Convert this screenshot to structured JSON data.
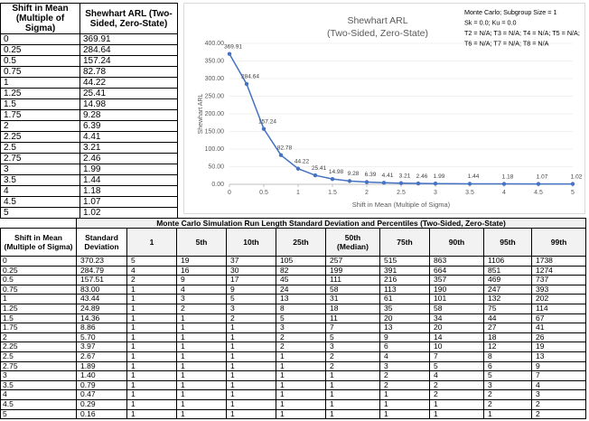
{
  "top_table": {
    "headers": [
      "Shift in Mean (Multiple of Sigma)",
      "Shewhart ARL (Two-Sided, Zero-State)"
    ]
  },
  "chart_data": {
    "type": "line",
    "title": "Shewhart ARL",
    "subtitle": "(Two-Sided, Zero-State)",
    "annotations": [
      "Monte Carlo; Subgroup Size = 1",
      "Sk = 0.0; Ku = 0.0",
      "T2 = N/A; T3 = N/A; T4 = N/A; T5 = N/A;",
      "T6 = N/A; T7 = N/A; T8 = N/A"
    ],
    "x_label": "Shift in Mean (Multiple of Sigma)",
    "y_label": "Shewhart ARL",
    "x": [
      0,
      0.25,
      0.5,
      0.75,
      1,
      1.25,
      1.5,
      1.75,
      2,
      2.25,
      2.5,
      2.75,
      3,
      3.5,
      4,
      4.5,
      5
    ],
    "series": [
      {
        "name": "Shewhart ARL",
        "color": "#4472c4",
        "values": [
          369.91,
          284.64,
          157.24,
          82.78,
          44.22,
          25.41,
          14.98,
          9.28,
          6.39,
          4.41,
          3.21,
          2.46,
          1.99,
          1.44,
          1.18,
          1.07,
          1.02
        ]
      }
    ],
    "xlim": [
      0,
      5
    ],
    "xticks": [
      0,
      0.5,
      1,
      1.5,
      2,
      2.5,
      3,
      3.5,
      4,
      4.5,
      5
    ],
    "ylim": [
      0,
      400
    ],
    "yticks": [
      {
        "value": 0,
        "label": "0.00"
      },
      {
        "value": 50,
        "label": "50.00"
      },
      {
        "value": 100,
        "label": "100.00"
      },
      {
        "value": 150,
        "label": "150.00"
      },
      {
        "value": 200,
        "label": "200.00"
      },
      {
        "value": 250,
        "label": "250.00"
      },
      {
        "value": 300,
        "label": "300.00"
      },
      {
        "value": 350,
        "label": "350.00"
      },
      {
        "value": 400,
        "label": "400.00"
      }
    ],
    "grid": true
  },
  "bottom_table": {
    "title": "Monte Carlo Simulation Run Length Standard Deviation and Percentiles (Two-Sided, Zero-State)",
    "headers": [
      "Shift in Mean (Multiple of Sigma)",
      "Standard Deviation",
      "1",
      "5th",
      "10th",
      "25th",
      "50th (Median)",
      "75th",
      "90th",
      "95th",
      "99th"
    ],
    "rows": [
      [
        "0",
        "370.23",
        "5",
        "19",
        "37",
        "105",
        "257",
        "515",
        "863",
        "1106",
        "1738"
      ],
      [
        "0.25",
        "284.79",
        "4",
        "16",
        "30",
        "82",
        "199",
        "391",
        "664",
        "851",
        "1274"
      ],
      [
        "0.5",
        "157.51",
        "2",
        "9",
        "17",
        "45",
        "111",
        "216",
        "357",
        "469",
        "737"
      ],
      [
        "0.75",
        "83.00",
        "1",
        "4",
        "9",
        "24",
        "58",
        "113",
        "190",
        "247",
        "393"
      ],
      [
        "1",
        "43.44",
        "1",
        "3",
        "5",
        "13",
        "31",
        "61",
        "101",
        "132",
        "202"
      ],
      [
        "1.25",
        "24.89",
        "1",
        "2",
        "3",
        "8",
        "18",
        "35",
        "58",
        "75",
        "114"
      ],
      [
        "1.5",
        "14.36",
        "1",
        "1",
        "2",
        "5",
        "11",
        "20",
        "34",
        "44",
        "67"
      ],
      [
        "1.75",
        "8.86",
        "1",
        "1",
        "1",
        "3",
        "7",
        "13",
        "20",
        "27",
        "41"
      ],
      [
        "2",
        "5.70",
        "1",
        "1",
        "1",
        "2",
        "5",
        "9",
        "14",
        "18",
        "26"
      ],
      [
        "2.25",
        "3.97",
        "1",
        "1",
        "1",
        "2",
        "3",
        "6",
        "10",
        "12",
        "19"
      ],
      [
        "2.5",
        "2.67",
        "1",
        "1",
        "1",
        "1",
        "2",
        "4",
        "7",
        "8",
        "13"
      ],
      [
        "2.75",
        "1.89",
        "1",
        "1",
        "1",
        "1",
        "2",
        "3",
        "5",
        "6",
        "9"
      ],
      [
        "3",
        "1.40",
        "1",
        "1",
        "1",
        "1",
        "1",
        "2",
        "4",
        "5",
        "7"
      ],
      [
        "3.5",
        "0.79",
        "1",
        "1",
        "1",
        "1",
        "1",
        "2",
        "2",
        "3",
        "4"
      ],
      [
        "4",
        "0.47",
        "1",
        "1",
        "1",
        "1",
        "1",
        "1",
        "2",
        "2",
        "3"
      ],
      [
        "4.5",
        "0.29",
        "1",
        "1",
        "1",
        "1",
        "1",
        "1",
        "1",
        "2",
        "2"
      ],
      [
        "5",
        "0.16",
        "1",
        "1",
        "1",
        "1",
        "1",
        "1",
        "1",
        "1",
        "2"
      ]
    ]
  }
}
